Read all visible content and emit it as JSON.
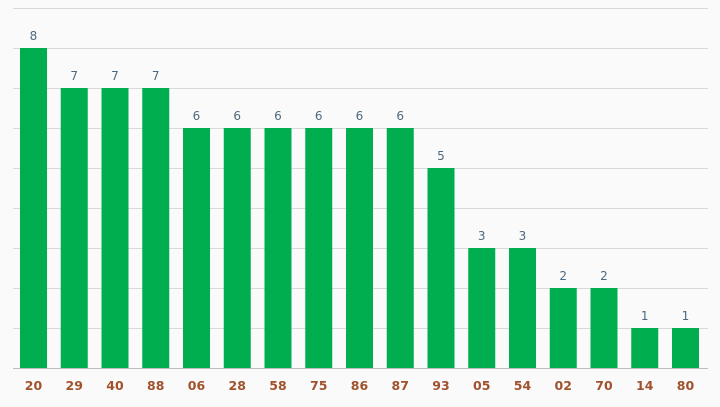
{
  "chart_data": {
    "type": "bar",
    "categories": [
      "20",
      "29",
      "40",
      "88",
      "06",
      "28",
      "58",
      "75",
      "86",
      "87",
      "93",
      "05",
      "54",
      "02",
      "70",
      "14",
      "80"
    ],
    "values": [
      8,
      7,
      7,
      7,
      6,
      6,
      6,
      6,
      6,
      6,
      5,
      3,
      3,
      2,
      2,
      1,
      1
    ],
    "title": "",
    "xlabel": "",
    "ylabel": "",
    "ylim": [
      0,
      9
    ],
    "grid": true,
    "data_labels": true,
    "colors": {
      "bar": "#00ae4f",
      "value_label": "#4e6a80",
      "category_label": "#a0522d",
      "grid": "#d9d9d9",
      "background": "#fafafa"
    }
  }
}
